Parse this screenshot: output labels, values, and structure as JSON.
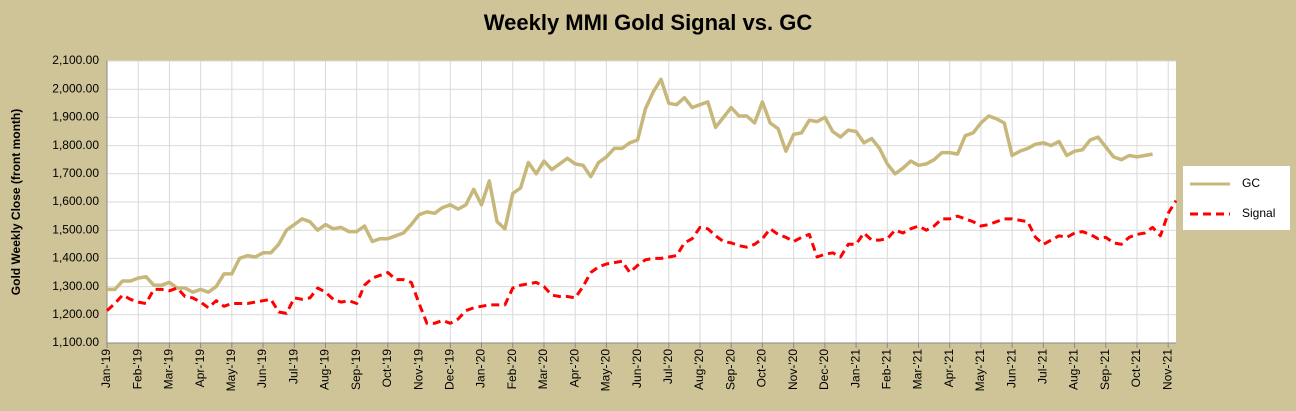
{
  "chart_data": {
    "type": "line",
    "title": "Weekly MMI Gold Signal vs. GC",
    "y_label": "Gold Weekly Close (front month)",
    "categories": [
      "Jan-'19",
      null,
      null,
      null,
      "Feb-'19",
      null,
      null,
      null,
      "Mar-'19",
      null,
      null,
      null,
      "Apr-'19",
      null,
      null,
      null,
      "May-'19",
      null,
      null,
      null,
      "Jun-'19",
      null,
      null,
      null,
      "Jul-'19",
      null,
      null,
      null,
      "Aug-'19",
      null,
      null,
      null,
      "Sep-'19",
      null,
      null,
      null,
      "Oct-'19",
      null,
      null,
      null,
      "Nov-'19",
      null,
      null,
      null,
      "Dec-'19",
      null,
      null,
      null,
      "Jan-'20",
      null,
      null,
      null,
      "Feb-'20",
      null,
      null,
      null,
      "Mar-'20",
      null,
      null,
      null,
      "Apr-'20",
      null,
      null,
      null,
      "May-'20",
      null,
      null,
      null,
      "Jun-'20",
      null,
      null,
      null,
      "Jul-'20",
      null,
      null,
      null,
      "Aug-'20",
      null,
      null,
      null,
      "Sep-'20",
      null,
      null,
      null,
      "Oct-'20",
      null,
      null,
      null,
      "Nov-'20",
      null,
      null,
      null,
      "Dec-'20",
      null,
      null,
      null,
      "Jan-'21",
      null,
      null,
      null,
      "Feb-'21",
      null,
      null,
      null,
      "Mar-'21",
      null,
      null,
      null,
      "Apr-'21",
      null,
      null,
      null,
      "May-'21",
      null,
      null,
      null,
      "Jun-'21",
      null,
      null,
      null,
      "Jul-'21",
      null,
      null,
      null,
      "Aug-'21",
      null,
      null,
      null,
      "Sep-'21",
      null,
      null,
      null,
      "Oct-'21",
      null,
      null,
      null,
      "Nov-'21",
      null
    ],
    "series": [
      {
        "name": "GC",
        "color": "#c8b77a",
        "dashed": false,
        "values": [
          1290,
          1290,
          1320,
          1320,
          1330,
          1335,
          1305,
          1305,
          1315,
          1295,
          1295,
          1280,
          1290,
          1280,
          1300,
          1345,
          1345,
          1400,
          1410,
          1405,
          1420,
          1420,
          1450,
          1500,
          1520,
          1540,
          1530,
          1500,
          1520,
          1505,
          1510,
          1495,
          1495,
          1515,
          1460,
          1470,
          1470,
          1480,
          1490,
          1520,
          1555,
          1565,
          1560,
          1580,
          1590,
          1575,
          1590,
          1645,
          1590,
          1675,
          1530,
          1505,
          1630,
          1650,
          1740,
          1700,
          1745,
          1715,
          1735,
          1755,
          1735,
          1730,
          1690,
          1740,
          1760,
          1790,
          1790,
          1810,
          1820,
          1930,
          1990,
          2035,
          1950,
          1945,
          1970,
          1935,
          1945,
          1955,
          1865,
          1900,
          1935,
          1905,
          1905,
          1880,
          1955,
          1880,
          1860,
          1780,
          1840,
          1845,
          1890,
          1885,
          1900,
          1850,
          1830,
          1855,
          1850,
          1810,
          1825,
          1790,
          1735,
          1700,
          1720,
          1745,
          1730,
          1735,
          1750,
          1775,
          1775,
          1770,
          1835,
          1845,
          1880,
          1905,
          1895,
          1880,
          1765,
          1780,
          1790,
          1805,
          1810,
          1800,
          1815,
          1765,
          1780,
          1785,
          1820,
          1830,
          1795,
          1760,
          1750,
          1765,
          1760,
          1765,
          1770,
          null,
          null,
          null
        ]
      },
      {
        "name": "Signal",
        "color": "#ff0000",
        "dashed": true,
        "values": [
          1215,
          1240,
          1270,
          1255,
          1245,
          1240,
          1290,
          1290,
          1285,
          1295,
          1265,
          1260,
          1245,
          1225,
          1250,
          1230,
          1240,
          1240,
          1240,
          1245,
          1250,
          1255,
          1210,
          1205,
          1260,
          1255,
          1260,
          1295,
          1280,
          1255,
          1245,
          1250,
          1240,
          1305,
          1330,
          1340,
          1350,
          1325,
          1325,
          1315,
          1240,
          1170,
          1170,
          1180,
          1170,
          1185,
          1215,
          1225,
          1230,
          1235,
          1235,
          1235,
          1295,
          1305,
          1310,
          1315,
          1300,
          1270,
          1265,
          1265,
          1260,
          1300,
          1350,
          1370,
          1380,
          1385,
          1390,
          1350,
          1375,
          1395,
          1400,
          1400,
          1405,
          1410,
          1455,
          1470,
          1510,
          1505,
          1480,
          1460,
          1455,
          1445,
          1440,
          1450,
          1470,
          1505,
          1485,
          1475,
          1460,
          1475,
          1485,
          1405,
          1415,
          1420,
          1405,
          1450,
          1450,
          1490,
          1465,
          1465,
          1470,
          1500,
          1490,
          1505,
          1515,
          1500,
          1515,
          1540,
          1540,
          1550,
          1540,
          1530,
          1515,
          1520,
          1530,
          1540,
          1540,
          1535,
          1530,
          1475,
          1450,
          1465,
          1480,
          1475,
          1490,
          1495,
          1485,
          1470,
          1475,
          1455,
          1450,
          1475,
          1485,
          1490,
          1510,
          1480,
          1560,
          1605
        ]
      }
    ],
    "ylim": [
      1100,
      2100
    ],
    "yticks": [
      {
        "value": 1100,
        "label": "1,100.00"
      },
      {
        "value": 1200,
        "label": "1,200.00"
      },
      {
        "value": 1300,
        "label": "1,300.00"
      },
      {
        "value": 1400,
        "label": "1,400.00"
      },
      {
        "value": 1500,
        "label": "1,500.00"
      },
      {
        "value": 1600,
        "label": "1,600.00"
      },
      {
        "value": 1700,
        "label": "1,700.00"
      },
      {
        "value": 1800,
        "label": "1,800.00"
      },
      {
        "value": 1900,
        "label": "1,900.00"
      },
      {
        "value": 2000,
        "label": "2,000.00"
      },
      {
        "value": 2100,
        "label": "2,100.00"
      }
    ],
    "grid": true,
    "legend": "right"
  }
}
